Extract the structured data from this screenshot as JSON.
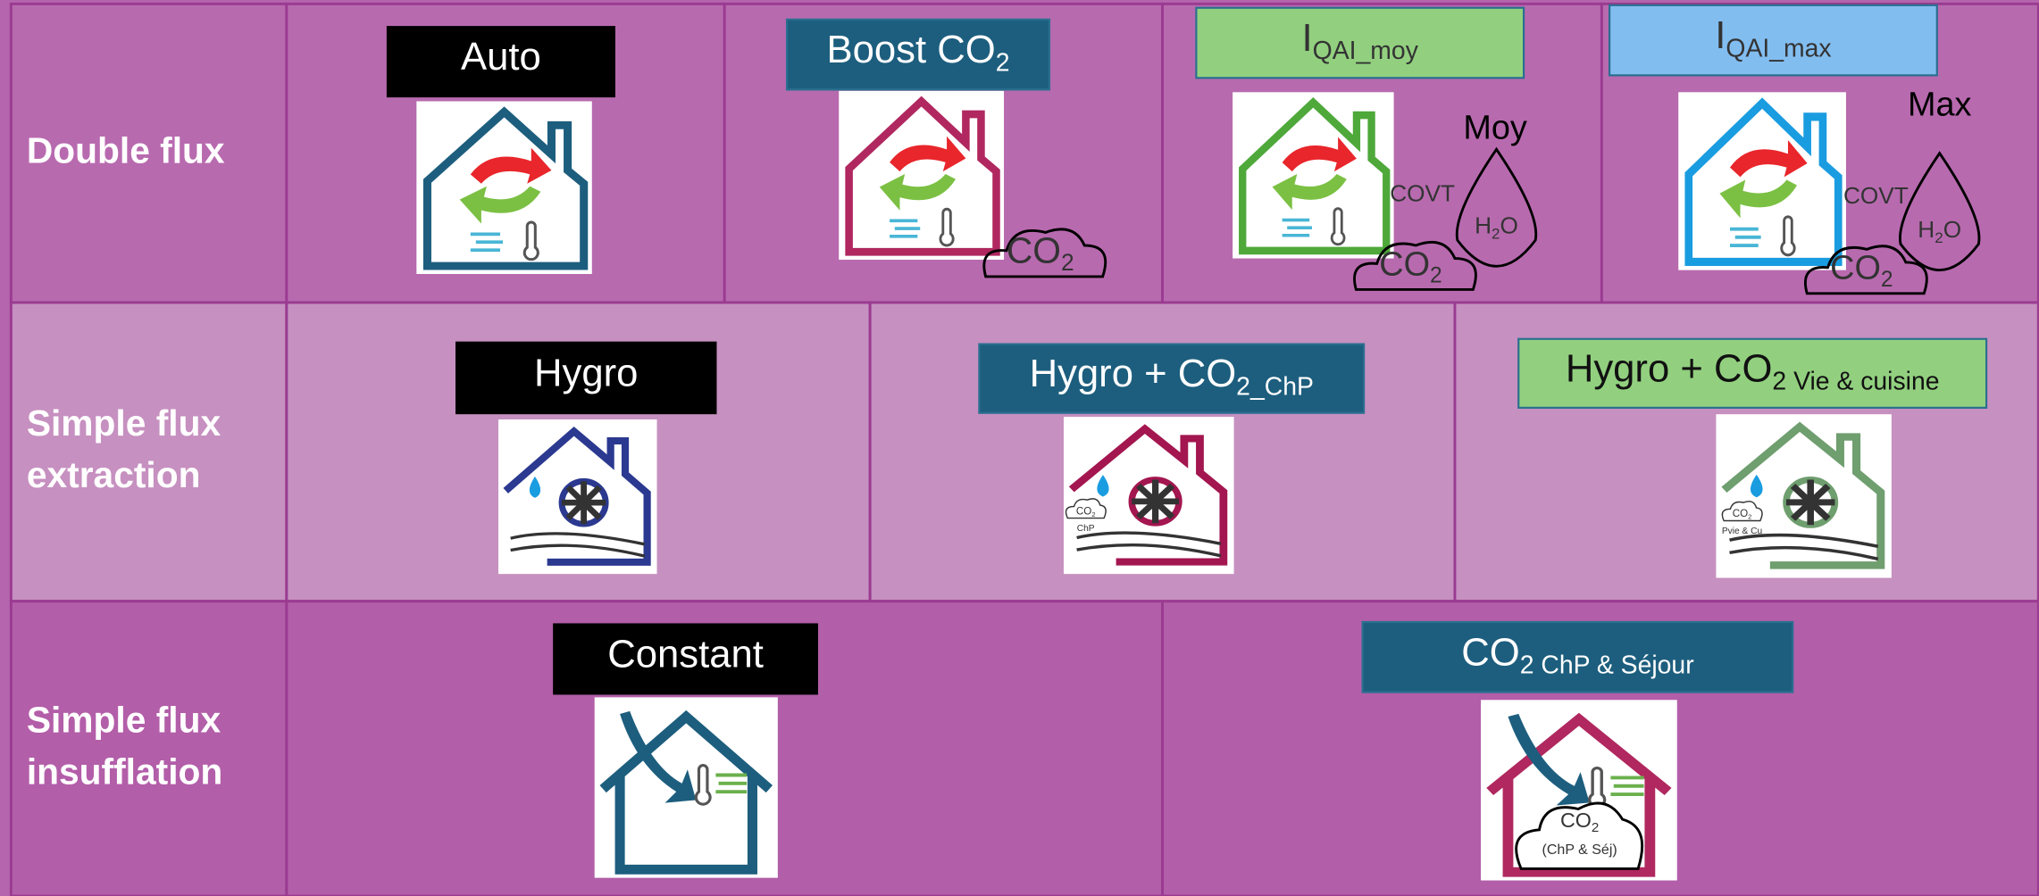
{
  "rows": [
    {
      "label": [
        "Double flux"
      ],
      "modes": [
        {
          "label": {
            "main": "Auto"
          },
          "box_color": "#000000",
          "text_color": "#ffffff",
          "icon": "double",
          "icon_color": "#1d5e7e"
        },
        {
          "label": {
            "main": "Boost CO",
            "sub": "2"
          },
          "box_color": "#1d5e7e",
          "text_color": "#ffffff",
          "icon": "double",
          "icon_color": "#b0285f",
          "notes": [
            {
              "main": "CO",
              "sub": "2"
            }
          ]
        },
        {
          "label": {
            "main": "I",
            "sub": "QAI_moy"
          },
          "box_color": "#92d07f",
          "text_color": "#333333",
          "icon": "double",
          "icon_color": "#4ea83a",
          "notes": [
            {
              "main": "COVT"
            },
            {
              "main": "Moy"
            },
            {
              "main": "H",
              "sub": "2",
              "tail": "O"
            },
            {
              "main": "CO",
              "sub": "2"
            }
          ]
        },
        {
          "label": {
            "main": "I",
            "sub": "QAI_max"
          },
          "box_color": "#82bdf0",
          "text_color": "#333333",
          "icon": "double",
          "icon_color": "#1a9ce0",
          "notes": [
            {
              "main": "COVT"
            },
            {
              "main": "Max"
            },
            {
              "main": "H",
              "sub": "2",
              "tail": "O"
            },
            {
              "main": "CO",
              "sub": "2"
            }
          ]
        }
      ]
    },
    {
      "label": [
        "Simple flux",
        "extraction"
      ],
      "modes": [
        {
          "label": {
            "main": "Hygro"
          },
          "box_color": "#000000",
          "text_color": "#ffffff",
          "icon": "hygro",
          "icon_color": "#2b3990"
        },
        {
          "label": {
            "main": "Hygro  + CO",
            "sub": "2_ChP"
          },
          "box_color": "#1d5e7e",
          "text_color": "#ffffff",
          "icon": "hygro",
          "icon_color": "#a3164f",
          "notes": [
            {
              "main": "CO",
              "sub": "2"
            },
            {
              "main": "ChP"
            }
          ]
        },
        {
          "label": {
            "main": "Hygro  + CO",
            "sub": "2 Vie & cuisine"
          },
          "box_color": "#92d07f",
          "text_color": "#111111",
          "icon": "hygro",
          "icon_color": "#6f9e6f",
          "notes": [
            {
              "main": "CO",
              "sub": "2"
            },
            {
              "main": "Pvie & Cu"
            }
          ]
        }
      ]
    },
    {
      "label": [
        "Simple flux",
        "insufflation"
      ],
      "modes": [
        {
          "label": {
            "main": "Constant"
          },
          "box_color": "#000000",
          "text_color": "#ffffff",
          "icon": "insuf",
          "icon_color": "#1d5e7e"
        },
        {
          "label": {
            "main": "CO",
            "sub": "2 ChP & Séjour"
          },
          "box_color": "#1d5e7e",
          "text_color": "#ffffff",
          "icon": "insuf",
          "icon_color": "#b0285f",
          "notes": [
            {
              "main": "CO",
              "sub": "2"
            },
            {
              "main": "(ChP & Séj)"
            }
          ]
        }
      ]
    }
  ]
}
